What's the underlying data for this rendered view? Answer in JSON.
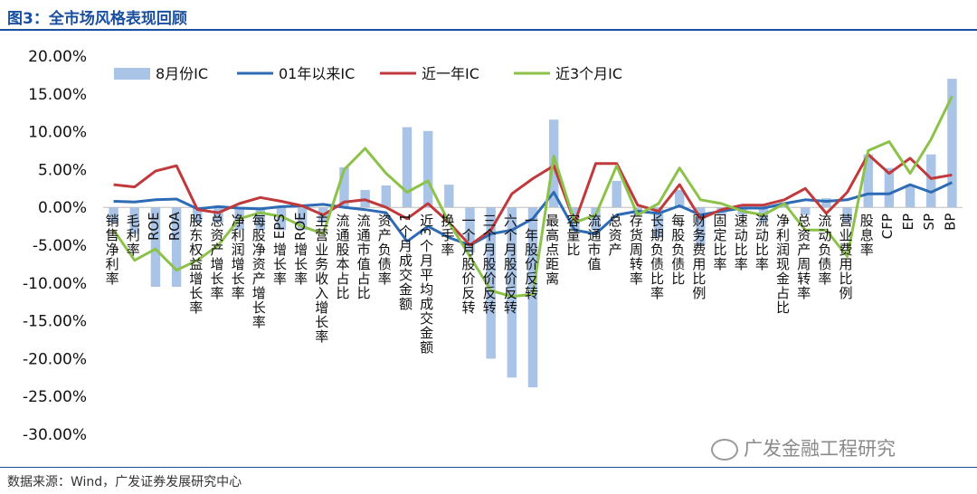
{
  "figure": {
    "title": "图3：全市场风格表现回顾"
  },
  "source": "数据来源：Wind，广发证券发展研究中心",
  "watermark": {
    "text": "广发金融工程研究",
    "icon": "wechat-icon"
  },
  "chart_data": {
    "type": "bar+line",
    "title": "",
    "xlabel": "",
    "ylabel": "",
    "ylim": [
      -0.3,
      0.2
    ],
    "yticks": [
      "20.00%",
      "15.00%",
      "10.00%",
      "5.00%",
      "0.00%",
      "-5.00%",
      "-10.00%",
      "-15.00%",
      "-20.00%",
      "-25.00%",
      "-30.00%"
    ],
    "legend_position": "top-left",
    "grid": false,
    "colors": {
      "bar": "#a9c4e6",
      "line01": "#2e6bb5",
      "line1y": "#c0393b",
      "line3m": "#8dc24a"
    },
    "categories": [
      "销售净利率",
      "毛利率",
      "ROE",
      "ROA",
      "股东权益增长率",
      "总资产增长率",
      "净利润增长率",
      "每股净资产增长率",
      "EPS增长率",
      "ROE增长率",
      "主营业务收入增长率",
      "流通股本占比",
      "流通市值占比",
      "资产负债率",
      "1个月成交金额",
      "近3个月平均成交金额",
      "换手率",
      "一个月股价反转",
      "三个月股价反转",
      "六个月股价反转",
      "一年股价反转",
      "最高点距离",
      "容量比",
      "流通市值",
      "总资产",
      "存货周转率",
      "长期负债比率",
      "每股负债比",
      "财务费用比例",
      "固定比率",
      "速动比率",
      "流动比率",
      "净利润现金占比",
      "总资产周转率",
      "流动负债率",
      "营业费用比例",
      "股息率",
      "CFP",
      "EP",
      "SP",
      "BP"
    ],
    "series": [
      {
        "name": "8月份IC",
        "kind": "bar",
        "values": [
          -0.02,
          -0.035,
          -0.105,
          -0.105,
          -0.02,
          -0.02,
          -0.03,
          -0.03,
          -0.03,
          -0.03,
          -0.02,
          0.053,
          0.023,
          0.029,
          0.106,
          0.101,
          0.03,
          -0.06,
          -0.2,
          -0.225,
          -0.238,
          0.116,
          -0.03,
          -0.03,
          0.035,
          -0.01,
          -0.04,
          0.023,
          -0.05,
          -0.01,
          -0.01,
          -0.02,
          0.007,
          -0.01,
          0.012,
          -0.02,
          0.07,
          0.052,
          0.03,
          0.07,
          0.17
        ]
      },
      {
        "name": "01年以来IC",
        "kind": "line",
        "values": [
          0.008,
          0.007,
          0.01,
          0.011,
          -0.002,
          0.001,
          -0.001,
          -0.002,
          0.001,
          0.002,
          0.004,
          0.0,
          -0.003,
          -0.007,
          -0.045,
          -0.025,
          -0.04,
          -0.05,
          -0.035,
          -0.03,
          -0.015,
          0.02,
          -0.03,
          -0.035,
          -0.01,
          -0.005,
          -0.008,
          0.002,
          -0.01,
          -0.005,
          -0.001,
          -0.001,
          0.005,
          0.01,
          0.008,
          0.01,
          0.018,
          0.018,
          0.03,
          0.02,
          0.033
        ]
      },
      {
        "name": "近一年IC",
        "kind": "line",
        "values": [
          0.03,
          0.027,
          0.048,
          0.055,
          -0.003,
          -0.007,
          0.005,
          0.013,
          0.008,
          0.002,
          -0.01,
          0.007,
          0.01,
          0.0,
          -0.015,
          0.005,
          -0.02,
          -0.05,
          -0.03,
          0.018,
          0.038,
          0.055,
          -0.02,
          0.058,
          0.058,
          0.003,
          -0.005,
          0.03,
          -0.015,
          -0.003,
          0.003,
          0.003,
          0.01,
          0.025,
          -0.008,
          0.02,
          0.07,
          0.045,
          0.065,
          0.038,
          0.043
        ]
      },
      {
        "name": "近3个月IC",
        "kind": "line",
        "values": [
          -0.03,
          -0.07,
          -0.055,
          -0.083,
          -0.07,
          -0.05,
          -0.015,
          -0.007,
          -0.012,
          -0.025,
          -0.035,
          0.05,
          0.078,
          0.045,
          0.02,
          0.035,
          -0.02,
          -0.065,
          -0.11,
          -0.118,
          -0.115,
          0.068,
          -0.02,
          -0.01,
          0.055,
          -0.01,
          0.005,
          0.052,
          0.01,
          0.005,
          -0.005,
          -0.01,
          0.005,
          -0.03,
          -0.03,
          -0.065,
          0.075,
          0.087,
          0.045,
          0.09,
          0.147
        ]
      }
    ]
  }
}
